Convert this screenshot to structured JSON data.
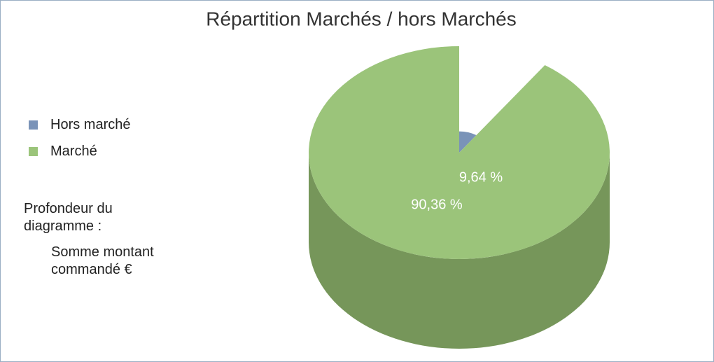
{
  "chart_data": {
    "type": "pie",
    "title": "Répartition Marchés / hors Marchés",
    "categories": [
      "Hors marché",
      "Marché"
    ],
    "values": [
      9.64,
      90.36
    ],
    "value_labels": [
      "9,64 %",
      "90,36 %"
    ],
    "colors": [
      "#7a93b8",
      "#9bc47a"
    ],
    "side_color": "#76965a",
    "legend": "left",
    "annotations": [
      "Profondeur du diagramme :",
      "Somme montant commandé €"
    ]
  }
}
